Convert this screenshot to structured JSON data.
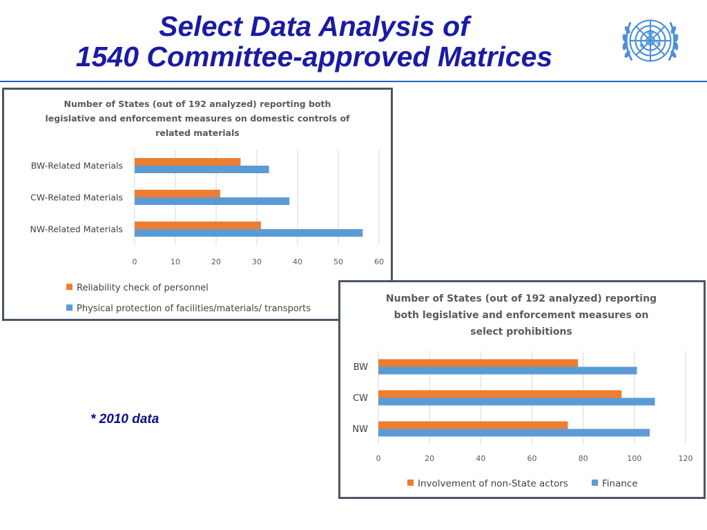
{
  "slide": {
    "title_line1": "Select Data Analysis of",
    "title_line2": "1540 Committee-approved Matrices",
    "footnote": "* 2010 data",
    "logo": "un-emblem-icon",
    "accent_color": "#1a1aa6"
  },
  "chart_data": [
    {
      "type": "bar",
      "orientation": "horizontal",
      "title_lines": [
        "Number of States (out of 192 analyzed) reporting both",
        "legislative and enforcement measures on domestic controls of",
        "related materials"
      ],
      "categories": [
        "BW-Related Materials",
        "CW-Related Materials",
        "NW-Related Materials"
      ],
      "series": [
        {
          "name": "Reliability check of personnel",
          "color": "#ed7d31",
          "values": [
            26,
            21,
            31
          ]
        },
        {
          "name": "Physical protection of facilities/materials/ transports",
          "color": "#5b9bd5",
          "values": [
            33,
            38,
            56
          ]
        }
      ],
      "xlim": [
        0,
        60
      ],
      "xticks": [
        0,
        10,
        20,
        30,
        40,
        50,
        60
      ],
      "grid": true,
      "legend": "bottom"
    },
    {
      "type": "bar",
      "orientation": "horizontal",
      "title_lines": [
        "Number of States (out of 192 analyzed) reporting",
        "both legislative and enforcement measures on",
        "select prohibitions"
      ],
      "categories": [
        "BW",
        "CW",
        "NW"
      ],
      "series": [
        {
          "name": "Involvement of non-State actors",
          "color": "#ed7d31",
          "values": [
            78,
            95,
            74
          ]
        },
        {
          "name": "Finance",
          "color": "#5b9bd5",
          "values": [
            101,
            108,
            106
          ]
        }
      ],
      "xlim": [
        0,
        120
      ],
      "xticks": [
        0,
        20,
        40,
        60,
        80,
        100,
        120
      ],
      "grid": true,
      "legend": "bottom"
    }
  ]
}
